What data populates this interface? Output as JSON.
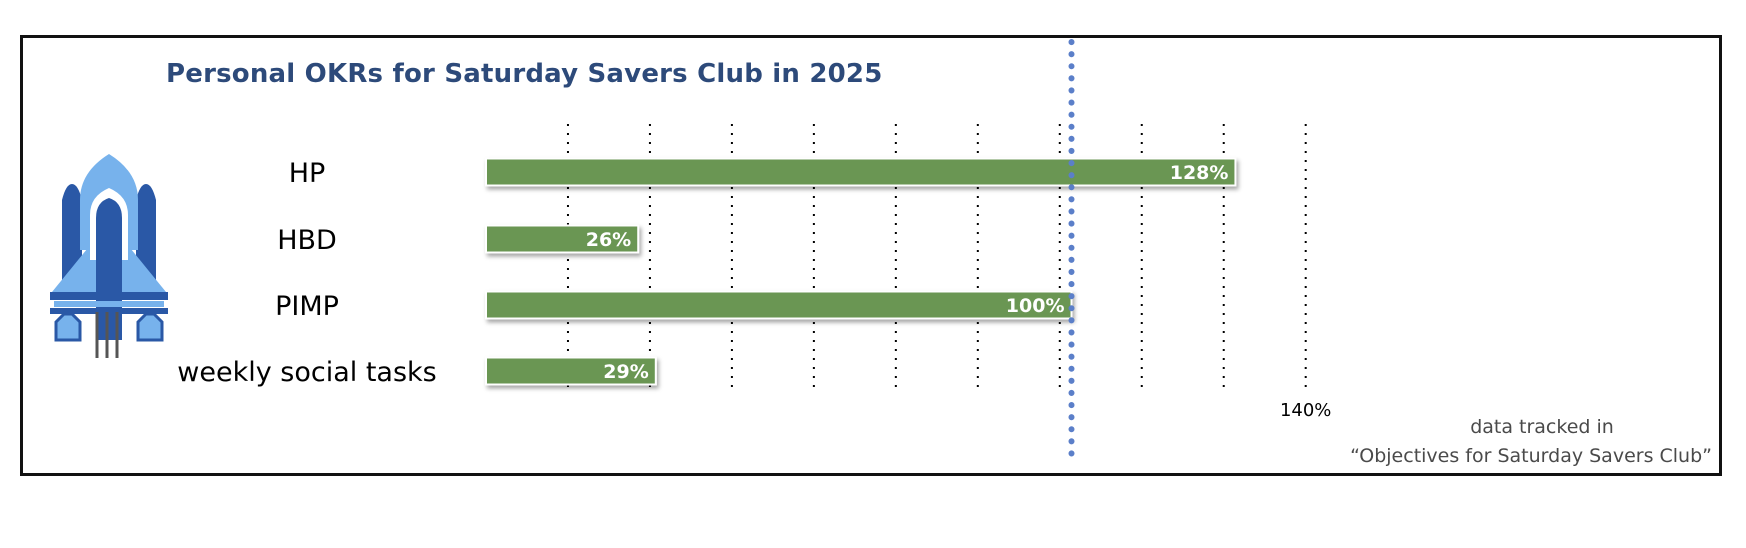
{
  "chart_data": {
    "type": "bar",
    "orientation": "horizontal",
    "title": "Personal OKRs for Saturday Savers Club in 2025",
    "categories": [
      "HP",
      "HBD",
      "PIMP",
      "weekly social tasks"
    ],
    "values": [
      128,
      26,
      100,
      29
    ],
    "value_labels": [
      "128%",
      "26%",
      "100%",
      "29%"
    ],
    "unit": "%",
    "xlim": [
      0,
      140
    ],
    "grid_step": 14,
    "tick_labels": [
      {
        "value": 140,
        "text": "140%"
      }
    ],
    "reference_line": 100,
    "grid": true,
    "bar_color": "#6b9653",
    "reference_line_color": "#5b7fc9",
    "title_color": "#2d4a7a"
  },
  "icon": "rocket-icon",
  "footnote": {
    "line1": "data tracked in",
    "line2": "“Objectives for Saturday Savers Club”"
  }
}
